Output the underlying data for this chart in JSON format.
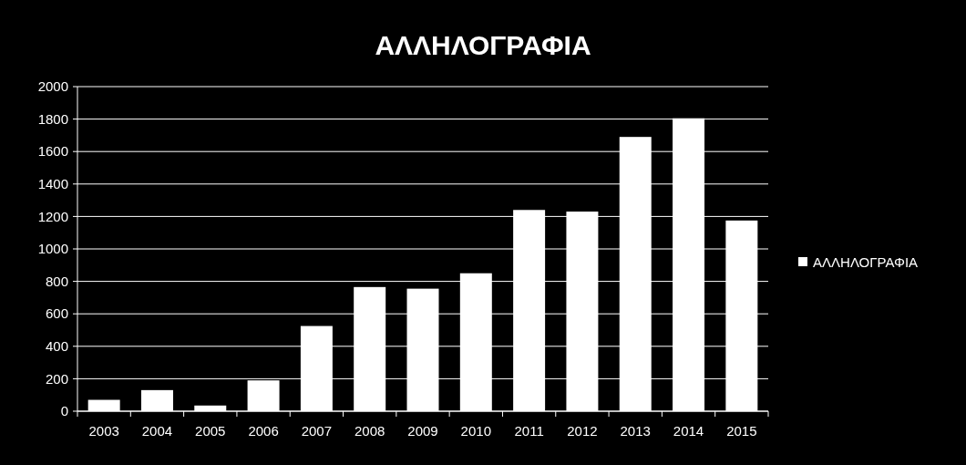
{
  "chart_data": {
    "type": "bar",
    "title": "ΑΛΛΗΛΟΓΡΑΦΙΑ",
    "categories": [
      "2003",
      "2004",
      "2005",
      "2006",
      "2007",
      "2008",
      "2009",
      "2010",
      "2011",
      "2012",
      "2013",
      "2014",
      "2015"
    ],
    "series": [
      {
        "name": "ΑΛΛΗΛΟΓΡΑΦΙΑ",
        "color": "#ffffff",
        "values": [
          70,
          130,
          35,
          190,
          525,
          765,
          755,
          850,
          1240,
          1230,
          1690,
          1805,
          1175
        ]
      }
    ],
    "ylim": [
      0,
      2000
    ],
    "yticks": [
      0,
      200,
      400,
      600,
      800,
      1000,
      1200,
      1400,
      1600,
      1800,
      2000
    ],
    "grid": "y",
    "legend": "right"
  }
}
